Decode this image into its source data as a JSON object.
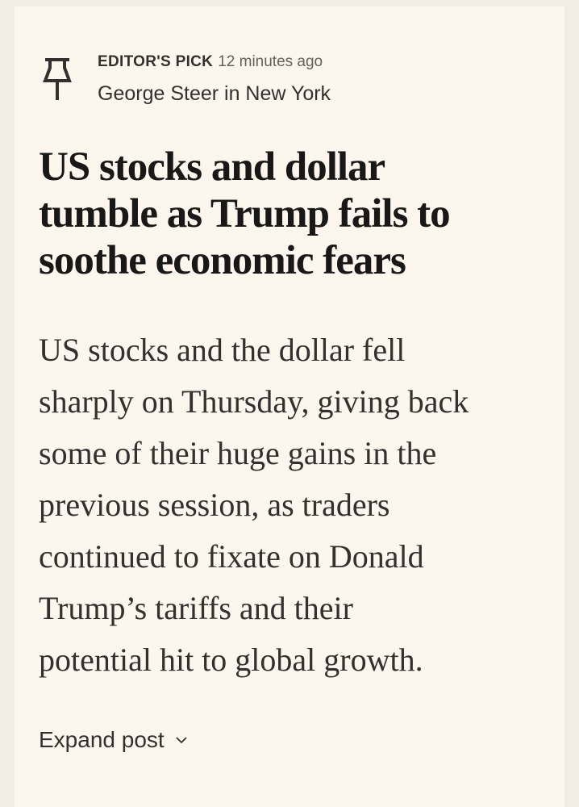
{
  "post": {
    "label": "EDITOR'S PICK",
    "time": "12 minutes ago",
    "author": "George Steer in New York",
    "headline": [
      "US stocks and dollar",
      "tumble as Trump fails to",
      "soothe economic fears"
    ],
    "body": [
      "US stocks and the dollar fell",
      "sharply on Thursday, giving back",
      "some of their huge gains in the",
      "previous session, as traders",
      "continued to fixate on Donald",
      "Trump’s tariffs and their",
      "potential hit to global growth."
    ],
    "expand": "Expand post"
  }
}
